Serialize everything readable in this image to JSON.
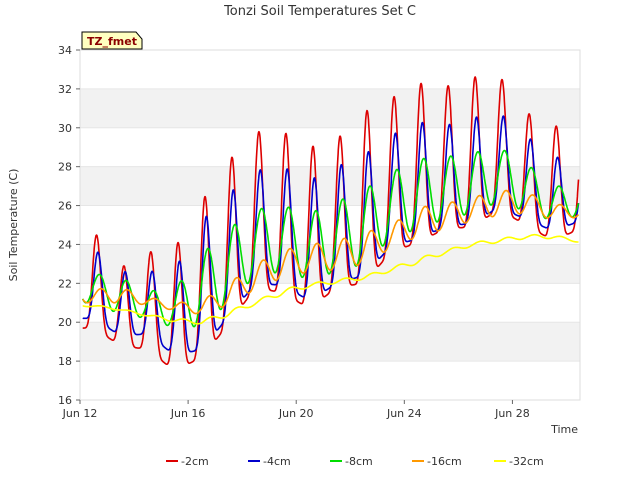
{
  "chart_data": {
    "type": "line",
    "title": "Tonzi Soil Temperatures Set C",
    "xlabel": "Time",
    "ylabel": "Soil Temperature (C)",
    "site_label": "TZ_fmet",
    "x_unit": "day",
    "xlim": [
      "Jun 12",
      "Jun 30 12:00"
    ],
    "x_ticks": [
      {
        "label": "Jun 12",
        "day": 12
      },
      {
        "label": "Jun 16",
        "day": 16
      },
      {
        "label": "Jun 20",
        "day": 20
      },
      {
        "label": "Jun 24",
        "day": 24
      },
      {
        "label": "Jun 28",
        "day": 28
      }
    ],
    "ylim": [
      16,
      34
    ],
    "y_ticks": [
      16,
      18,
      20,
      22,
      24,
      26,
      28,
      30,
      32,
      34
    ],
    "grid": "horizontal bands",
    "legend_position": "bottom",
    "x": [
      "Jun 12",
      "Jun 13",
      "Jun 14",
      "Jun 15",
      "Jun 16",
      "Jun 17",
      "Jun 18",
      "Jun 19",
      "Jun 20",
      "Jun 21",
      "Jun 22",
      "Jun 23",
      "Jun 24",
      "Jun 25",
      "Jun 26",
      "Jun 27",
      "Jun 28",
      "Jun 29",
      "Jun 30"
    ],
    "series": [
      {
        "name": "-2cm",
        "color": "#dd0000",
        "daily_min": [
          19.7,
          18.8,
          18.6,
          17.5,
          18.2,
          19.9,
          21.8,
          21.5,
          20.7,
          21.8,
          22.0,
          23.6,
          24.1,
          24.8,
          24.9,
          25.8,
          25.0,
          24.2,
          24.8
        ],
        "daily_max": [
          24.7,
          22.8,
          23.6,
          23.8,
          26.2,
          28.3,
          29.8,
          29.8,
          29.0,
          29.4,
          30.8,
          31.5,
          32.3,
          32.1,
          32.6,
          32.7,
          30.8,
          30.1,
          30.0
        ]
      },
      {
        "name": "-4cm",
        "color": "#0000cc",
        "daily_min": [
          20.2,
          19.3,
          19.4,
          18.3,
          18.6,
          20.3,
          22.0,
          21.9,
          21.1,
          22.0,
          22.4,
          23.9,
          24.3,
          24.9,
          25.1,
          25.9,
          25.3,
          24.7,
          25.2
        ],
        "daily_max": [
          23.8,
          22.6,
          22.6,
          22.7,
          25.2,
          26.6,
          27.8,
          28.0,
          27.3,
          28.0,
          28.6,
          29.6,
          30.3,
          30.1,
          30.5,
          30.8,
          29.6,
          28.5,
          28.4
        ]
      },
      {
        "name": "-8cm",
        "color": "#00dd00",
        "daily_min": [
          21.0,
          20.4,
          20.2,
          19.7,
          19.8,
          21.0,
          22.4,
          22.6,
          22.2,
          22.6,
          23.0,
          24.3,
          24.8,
          25.3,
          25.6,
          26.2,
          25.7,
          25.2,
          25.5
        ],
        "daily_max": [
          22.5,
          22.3,
          21.6,
          21.7,
          23.5,
          24.8,
          25.8,
          26.0,
          25.6,
          26.2,
          26.8,
          27.7,
          28.4,
          28.5,
          28.7,
          29.0,
          28.2,
          27.0,
          27.0
        ]
      },
      {
        "name": "-16cm",
        "color": "#ff9900",
        "daily_min": [
          21.0,
          21.0,
          20.9,
          20.6,
          20.4,
          20.9,
          21.7,
          22.3,
          22.6,
          22.7,
          23.0,
          23.8,
          24.4,
          24.8,
          25.2,
          25.5,
          25.6,
          25.3,
          25.4
        ],
        "daily_max": [
          21.7,
          21.8,
          21.3,
          21.0,
          21.1,
          22.0,
          23.0,
          23.7,
          24.0,
          24.2,
          24.6,
          25.0,
          25.9,
          26.1,
          26.4,
          26.8,
          26.7,
          26.1,
          25.9
        ]
      },
      {
        "name": "-32cm",
        "color": "#ffff00",
        "daily_min": [
          20.8,
          20.6,
          20.3,
          20.0,
          19.9,
          20.3,
          20.9,
          21.4,
          21.8,
          22.0,
          22.2,
          22.6,
          23.0,
          23.5,
          23.9,
          24.1,
          24.3,
          24.3,
          24.1
        ],
        "daily_max": [
          20.9,
          20.7,
          20.4,
          20.2,
          20.1,
          20.6,
          21.1,
          21.7,
          22.0,
          22.2,
          22.4,
          22.8,
          23.3,
          23.7,
          24.1,
          24.3,
          24.5,
          24.5,
          24.2
        ]
      }
    ]
  }
}
